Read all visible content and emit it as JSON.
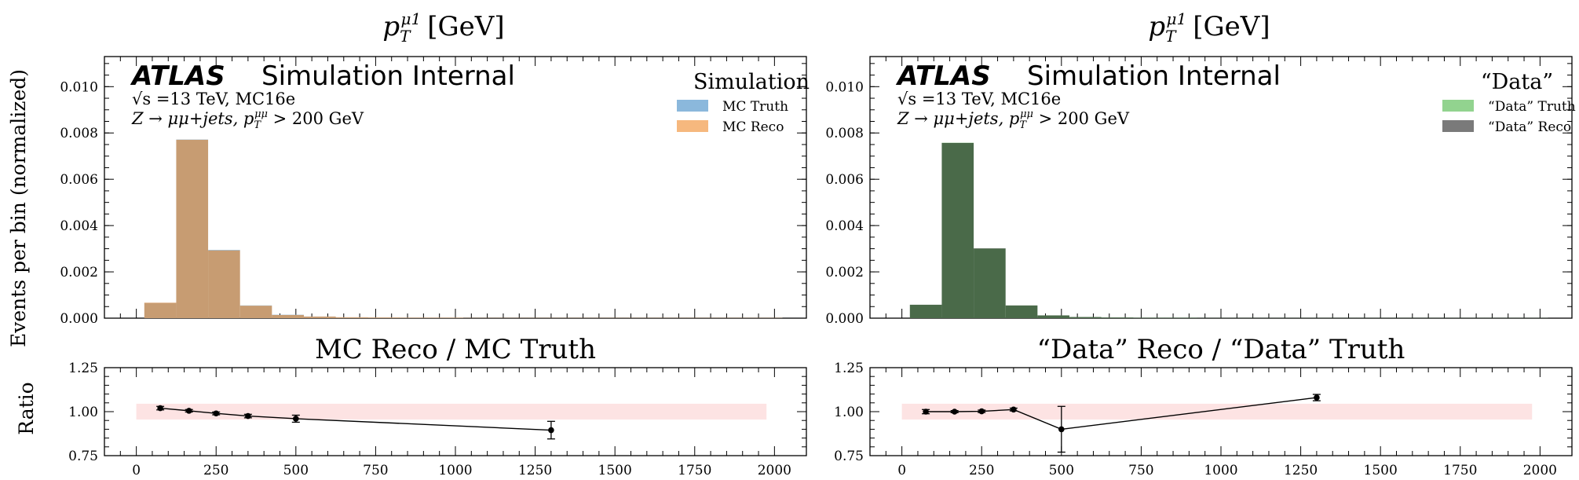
{
  "figure": {
    "ylabel_main": "Events per bin (normalized)",
    "ylabel_ratio": "Ratio"
  },
  "chart_data": [
    {
      "type": "bar",
      "panel": "main-left",
      "title_base": "p",
      "title_sub": "T",
      "title_sup": "μ1",
      "title_unit": "[GeV]",
      "atlas_label": "ATLAS",
      "atlas_suffix": "Simulation Internal",
      "line1": "√s =13 TeV, MC16e",
      "line2": "Z → μμ+jets, p",
      "line2_sub": "T",
      "line2_sup": "μμ",
      "line2_tail": " > 200 GeV",
      "legend_title": "Simulation",
      "bin_edges": [
        25,
        125,
        225,
        325,
        425,
        525,
        625,
        725,
        825,
        925,
        1025,
        1125,
        1225,
        1325,
        1425,
        1525,
        1625,
        1725,
        1825,
        1925,
        2025
      ],
      "series": [
        {
          "name": "MC Truth",
          "color": "#8bb8dc",
          "values": [
            0.00066,
            0.00772,
            0.00295,
            0.00055,
            0.00015,
            7e-05,
            4e-05,
            3e-05,
            2e-05,
            2e-05,
            1e-05,
            1e-05,
            1e-05,
            1e-05,
            1e-05,
            1e-05,
            1e-05,
            1e-05,
            1e-05,
            1e-05
          ]
        },
        {
          "name": "MC Reco",
          "color": "#f6b87e",
          "values": [
            0.00067,
            0.00771,
            0.00293,
            0.00054,
            0.00014,
            7e-05,
            4e-05,
            3e-05,
            2e-05,
            2e-05,
            1e-05,
            1e-05,
            1e-05,
            1e-05,
            1e-05,
            1e-05,
            1e-05,
            1e-05,
            1e-05,
            1e-05
          ]
        }
      ],
      "overlap_color": "#c79c72",
      "ylim": [
        0,
        0.0113
      ],
      "xlim": [
        -100,
        2100
      ],
      "yticks": [
        "0.000",
        "0.002",
        "0.004",
        "0.006",
        "0.008",
        "0.010"
      ],
      "ytick_values": [
        0,
        0.002,
        0.004,
        0.006,
        0.008,
        0.01
      ]
    },
    {
      "type": "bar",
      "panel": "main-right",
      "title_base": "p",
      "title_sub": "T",
      "title_sup": "μ1",
      "title_unit": "[GeV]",
      "atlas_label": "ATLAS",
      "atlas_suffix": "Simulation Internal",
      "line1": "√s =13 TeV, MC16e",
      "line2": "Z → μμ+jets, p",
      "line2_sub": "T",
      "line2_sup": "μμ",
      "line2_tail": " > 200 GeV",
      "legend_title": "“Data”",
      "bin_edges": [
        25,
        125,
        225,
        325,
        425,
        525,
        625,
        725,
        825,
        925,
        1025,
        1125,
        1225,
        1325,
        1425,
        1525,
        1625,
        1725,
        1825,
        1925,
        2025
      ],
      "series": [
        {
          "name": "“Data” Truth",
          "color": "#92d38f",
          "values": [
            0.00058,
            0.00758,
            0.00301,
            0.00055,
            0.00012,
            5e-05,
            3e-05,
            2e-05,
            2e-05,
            1e-05,
            1e-05,
            1e-05,
            1e-05,
            1e-05,
            1e-05,
            1e-05,
            1e-05,
            1e-05,
            1e-05,
            1e-05
          ]
        },
        {
          "name": "“Data” Reco",
          "color": "#7a7a7a",
          "values": [
            0.00058,
            0.00757,
            0.00302,
            0.00055,
            0.00012,
            5e-05,
            3e-05,
            2e-05,
            2e-05,
            1e-05,
            1e-05,
            1e-05,
            1e-05,
            1e-05,
            1e-05,
            1e-05,
            1e-05,
            1e-05,
            1e-05,
            1e-05
          ]
        }
      ],
      "overlap_color": "#4a6a49",
      "ylim": [
        0,
        0.0113
      ],
      "xlim": [
        -100,
        2100
      ],
      "yticks": [
        "0.000",
        "0.002",
        "0.004",
        "0.006",
        "0.008",
        "0.010"
      ],
      "ytick_values": [
        0,
        0.002,
        0.004,
        0.006,
        0.008,
        0.01
      ]
    },
    {
      "type": "line",
      "panel": "ratio-left",
      "title": "MC Reco / MC Truth",
      "x": [
        75,
        165,
        250,
        350,
        500,
        1300
      ],
      "y": [
        1.02,
        1.005,
        0.99,
        0.975,
        0.96,
        0.895
      ],
      "yerr": [
        0.01,
        0.007,
        0.008,
        0.01,
        0.02,
        0.05
      ],
      "band": [
        0.955,
        1.045
      ],
      "band_x": [
        0,
        1975
      ],
      "band_color": "#fde3e3",
      "ylim": [
        0.75,
        1.25
      ],
      "xlim": [
        -100,
        2100
      ],
      "yticks": [
        "0.75",
        "1.00",
        "1.25"
      ],
      "ytick_values": [
        0.75,
        1.0,
        1.25
      ],
      "xticks": [
        "0",
        "250",
        "500",
        "750",
        "1000",
        "1250",
        "1500",
        "1750",
        "2000"
      ],
      "xtick_values": [
        0,
        250,
        500,
        750,
        1000,
        1250,
        1500,
        1750,
        2000
      ]
    },
    {
      "type": "line",
      "panel": "ratio-right",
      "title": "“Data” Reco / “Data” Truth",
      "x": [
        75,
        165,
        250,
        350,
        500,
        1300
      ],
      "y": [
        1.0,
        1.0,
        1.002,
        1.012,
        0.9,
        1.08
      ],
      "yerr": [
        0.012,
        0.006,
        0.007,
        0.008,
        0.13,
        0.018
      ],
      "band": [
        0.955,
        1.045
      ],
      "band_x": [
        0,
        1975
      ],
      "band_color": "#fde3e3",
      "ylim": [
        0.75,
        1.25
      ],
      "xlim": [
        -100,
        2100
      ],
      "yticks": [
        "0.75",
        "1.00",
        "1.25"
      ],
      "ytick_values": [
        0.75,
        1.0,
        1.25
      ],
      "xticks": [
        "0",
        "250",
        "500",
        "750",
        "1000",
        "1250",
        "1500",
        "1750",
        "2000"
      ],
      "xtick_values": [
        0,
        250,
        500,
        750,
        1000,
        1250,
        1500,
        1750,
        2000
      ]
    }
  ]
}
